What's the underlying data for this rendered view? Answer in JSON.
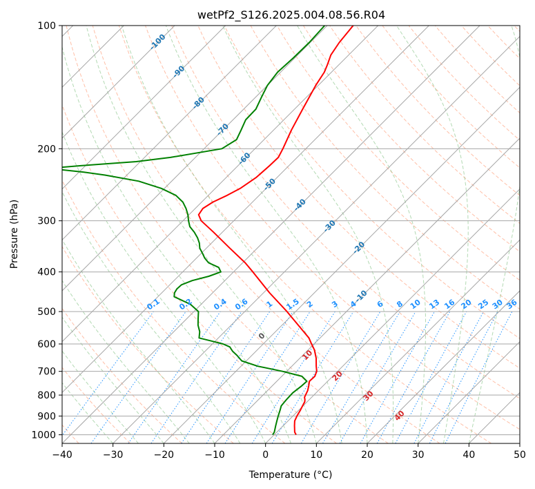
{
  "chart_data": {
    "type": "line",
    "subtype": "skew-t log-p",
    "title": "wetPf2_S126.2025.004.08.56.R04",
    "xlabel": "Temperature (°C)",
    "ylabel": "Pressure (hPa)",
    "xlim": [
      -40,
      50
    ],
    "ylim": [
      1050,
      100
    ],
    "y_scale": "log",
    "grid": true,
    "x_ticks": [
      "−40",
      "−30",
      "−20",
      "−10",
      "0",
      "10",
      "20",
      "30",
      "40",
      "50"
    ],
    "x_tick_values": [
      -40,
      -30,
      -20,
      -10,
      0,
      10,
      20,
      30,
      40,
      50
    ],
    "y_ticks": [
      "100",
      "200",
      "300",
      "400",
      "500",
      "600",
      "700",
      "800",
      "900",
      "1000"
    ],
    "y_tick_values": [
      100,
      200,
      300,
      400,
      500,
      600,
      700,
      800,
      900,
      1000
    ],
    "series": [
      {
        "color": "#ff0000",
        "pressure": [
          1000,
          985,
          950,
          925,
          900,
          870,
          850,
          830,
          820,
          810,
          780,
          760,
          740,
          720,
          700,
          680,
          650,
          620,
          600,
          580,
          550,
          500,
          450,
          400,
          380,
          350,
          320,
          300,
          290,
          280,
          270,
          260,
          250,
          235,
          220,
          210,
          200,
          180,
          160,
          140,
          130,
          125,
          118,
          110,
          100
        ],
        "temperature": [
          4.3,
          3.5,
          2.2,
          1.3,
          0.8,
          0.3,
          -0.1,
          -0.5,
          -0.9,
          -1.4,
          -2.1,
          -2.8,
          -3.6,
          -3.5,
          -4.1,
          -5.2,
          -6.8,
          -8.8,
          -10.5,
          -12.2,
          -15.6,
          -21.7,
          -28.8,
          -36.2,
          -39.5,
          -45.4,
          -51.7,
          -56.4,
          -58.1,
          -58.5,
          -57.8,
          -56.3,
          -55.1,
          -54.1,
          -53.8,
          -53.7,
          -54.5,
          -56.5,
          -58.4,
          -60.5,
          -61.4,
          -62.2,
          -63.5,
          -64.3,
          -64.9
        ]
      },
      {
        "color": "#008000",
        "pressure": [
          1000,
          985,
          950,
          925,
          900,
          870,
          850,
          820,
          790,
          760,
          740,
          720,
          700,
          680,
          660,
          640,
          625,
          610,
          600,
          590,
          580,
          560,
          540,
          520,
          500,
          480,
          460,
          450,
          440,
          430,
          420,
          410,
          400,
          390,
          380,
          370,
          360,
          350,
          340,
          330,
          320,
          310,
          300,
          290,
          280,
          270,
          260,
          250,
          240,
          232,
          228,
          225,
          222,
          220,
          215,
          210,
          200,
          190,
          180,
          170,
          160,
          150,
          140,
          130,
          120,
          110,
          100
        ],
        "temperature": [
          -0.3,
          -0.5,
          -1.5,
          -2.2,
          -2.9,
          -3.7,
          -4.3,
          -4.5,
          -4.6,
          -4.2,
          -4.1,
          -6.0,
          -10.8,
          -16.7,
          -20.9,
          -22.9,
          -24.6,
          -26.0,
          -27.9,
          -30.8,
          -33.8,
          -34.9,
          -36.5,
          -37.8,
          -39.1,
          -42.1,
          -46.8,
          -47.5,
          -47.8,
          -47.7,
          -46.4,
          -44.0,
          -42.5,
          -43.8,
          -46.7,
          -48.4,
          -49.8,
          -51.3,
          -52.4,
          -53.8,
          -55.5,
          -57.5,
          -58.9,
          -60.2,
          -61.8,
          -63.7,
          -66.4,
          -70.6,
          -76.5,
          -84.3,
          -89.2,
          -94.1,
          -94.3,
          -90.9,
          -80.8,
          -74.9,
          -66.5,
          -65.4,
          -66.4,
          -67.5,
          -67.6,
          -68.8,
          -70.0,
          -70.6,
          -70.3,
          -70.2,
          -70.5
        ]
      }
    ],
    "isotherms_range": [
      -130,
      50
    ],
    "isotherms_step": 10,
    "dry_adiabats_theta_k": [
      -60,
      -50,
      -40,
      -30,
      -20,
      -10,
      0,
      10,
      20,
      30,
      40,
      50,
      60,
      70,
      80,
      90,
      100,
      110,
      120,
      130,
      140,
      150,
      160,
      170,
      180,
      190,
      200
    ],
    "dry_adiabat_color": "#ff7f50",
    "moist_adiabat_color": "#7fbf7f",
    "mixing_ratio_color": "#1e90ff",
    "temperature_labels": [
      "-100",
      "-90",
      "-80",
      "-70",
      "-60",
      "-50",
      "-40",
      "-30",
      "-20",
      "-10",
      "0",
      "10",
      "20",
      "30",
      "40"
    ],
    "temperature_label_values": [
      -100,
      -90,
      -80,
      -70,
      -60,
      -50,
      -40,
      -30,
      -20,
      -10,
      0,
      10,
      20,
      30,
      40
    ],
    "mixing_ratio_labels": [
      "0.1",
      "0.2",
      "0.4",
      "0.6",
      "1",
      "1.5",
      "2",
      "3",
      "4",
      "6",
      "8",
      "10",
      "13",
      "16",
      "20",
      "25",
      "30",
      "36"
    ],
    "mixing_ratio_values": [
      0.1,
      0.2,
      0.4,
      0.6,
      1,
      1.5,
      2,
      3,
      4,
      6,
      8,
      10,
      13,
      16,
      20,
      25,
      30,
      36
    ]
  }
}
